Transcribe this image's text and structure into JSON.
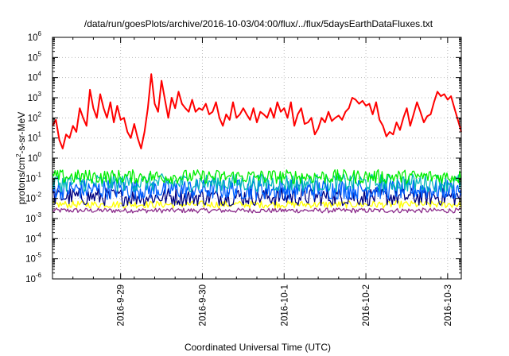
{
  "chart_data": {
    "type": "line",
    "title": "/data/run/goesPlots/archive/2016-10-03/04:00/flux/../flux/5daysEarthDataFluxes.txt",
    "xlabel": "Coordinated Universal Time (UTC)",
    "ylabel": {
      "prefix": "protons/cm",
      "superscript": "2",
      "suffix": "-s-sr-MeV"
    },
    "y_scale": "log",
    "ylim": [
      1e-06,
      1000000.0
    ],
    "y_ticks": [
      {
        "base": "10",
        "exp": "-6",
        "value": 1e-06
      },
      {
        "base": "10",
        "exp": "-5",
        "value": 1e-05
      },
      {
        "base": "10",
        "exp": "-4",
        "value": 0.0001
      },
      {
        "base": "10",
        "exp": "-3",
        "value": 0.001
      },
      {
        "base": "10",
        "exp": "-2",
        "value": 0.01
      },
      {
        "base": "10",
        "exp": "-1",
        "value": 0.1
      },
      {
        "base": "10",
        "exp": "0",
        "value": 1
      },
      {
        "base": "10",
        "exp": "1",
        "value": 10.0
      },
      {
        "base": "10",
        "exp": "2",
        "value": 100.0
      },
      {
        "base": "10",
        "exp": "3",
        "value": 1000.0
      },
      {
        "base": "10",
        "exp": "4",
        "value": 10000.0
      },
      {
        "base": "10",
        "exp": "5",
        "value": 100000.0
      },
      {
        "base": "10",
        "exp": "6",
        "value": 1000000.0
      }
    ],
    "x_scale": "time",
    "xlim": [
      "2016-09-28T04:00",
      "2016-10-03T04:00"
    ],
    "x_ticks": [
      {
        "label": "2016-9-29",
        "value": "2016-09-29T00:00"
      },
      {
        "label": "2016-9-30",
        "value": "2016-09-30T00:00"
      },
      {
        "label": "2016-10-1",
        "value": "2016-10-01T00:00"
      },
      {
        "label": "2016-10-2",
        "value": "2016-10-02T00:00"
      },
      {
        "label": "2016-10-3",
        "value": "2016-10-03T00:00"
      }
    ],
    "grid": true,
    "series": [
      {
        "color": "#ff0000",
        "typical_level": "1e1 to 1e3",
        "values": [
          [
            "2016-09-28T04:00",
            40
          ],
          [
            "2016-09-28T05:00",
            80
          ],
          [
            "2016-09-28T06:00",
            8
          ],
          [
            "2016-09-28T07:00",
            3
          ],
          [
            "2016-09-28T08:00",
            15
          ],
          [
            "2016-09-28T09:00",
            10
          ],
          [
            "2016-09-28T10:00",
            40
          ],
          [
            "2016-09-28T11:00",
            20
          ],
          [
            "2016-09-28T12:00",
            300
          ],
          [
            "2016-09-28T13:00",
            100
          ],
          [
            "2016-09-28T14:00",
            40
          ],
          [
            "2016-09-28T15:00",
            2500
          ],
          [
            "2016-09-28T16:00",
            300
          ],
          [
            "2016-09-28T17:00",
            100
          ],
          [
            "2016-09-28T18:00",
            1500
          ],
          [
            "2016-09-28T19:00",
            300
          ],
          [
            "2016-09-28T20:00",
            100
          ],
          [
            "2016-09-28T21:00",
            600
          ],
          [
            "2016-09-28T22:00",
            60
          ],
          [
            "2016-09-28T23:00",
            400
          ],
          [
            "2016-09-29T00:00",
            80
          ],
          [
            "2016-09-29T01:00",
            100
          ],
          [
            "2016-09-29T02:00",
            20
          ],
          [
            "2016-09-29T03:00",
            10
          ],
          [
            "2016-09-29T04:00",
            50
          ],
          [
            "2016-09-29T05:00",
            10
          ],
          [
            "2016-09-29T06:00",
            3
          ],
          [
            "2016-09-29T07:00",
            20
          ],
          [
            "2016-09-29T08:00",
            300
          ],
          [
            "2016-09-29T09:00",
            15000
          ],
          [
            "2016-09-29T10:00",
            500
          ],
          [
            "2016-09-29T11:00",
            200
          ],
          [
            "2016-09-29T12:00",
            7000
          ],
          [
            "2016-09-29T13:00",
            800
          ],
          [
            "2016-09-29T14:00",
            100
          ],
          [
            "2016-09-29T15:00",
            1000
          ],
          [
            "2016-09-29T16:00",
            300
          ],
          [
            "2016-09-29T17:00",
            2000
          ],
          [
            "2016-09-29T18:00",
            500
          ],
          [
            "2016-09-29T19:00",
            300
          ],
          [
            "2016-09-29T20:00",
            200
          ],
          [
            "2016-09-29T21:00",
            800
          ],
          [
            "2016-09-29T22:00",
            200
          ],
          [
            "2016-09-29T23:00",
            300
          ],
          [
            "2016-09-30T00:00",
            250
          ],
          [
            "2016-09-30T01:00",
            500
          ],
          [
            "2016-09-30T02:00",
            150
          ],
          [
            "2016-09-30T03:00",
            200
          ],
          [
            "2016-09-30T04:00",
            600
          ],
          [
            "2016-09-30T05:00",
            100
          ],
          [
            "2016-09-30T06:00",
            40
          ],
          [
            "2016-09-30T07:00",
            150
          ],
          [
            "2016-09-30T08:00",
            80
          ],
          [
            "2016-09-30T09:00",
            600
          ],
          [
            "2016-09-30T10:00",
            100
          ],
          [
            "2016-09-30T11:00",
            150
          ],
          [
            "2016-09-30T12:00",
            300
          ],
          [
            "2016-09-30T13:00",
            150
          ],
          [
            "2016-09-30T14:00",
            80
          ],
          [
            "2016-09-30T15:00",
            300
          ],
          [
            "2016-09-30T16:00",
            60
          ],
          [
            "2016-09-30T17:00",
            200
          ],
          [
            "2016-09-30T18:00",
            150
          ],
          [
            "2016-09-30T19:00",
            100
          ],
          [
            "2016-09-30T20:00",
            300
          ],
          [
            "2016-09-30T21:00",
            100
          ],
          [
            "2016-09-30T22:00",
            600
          ],
          [
            "2016-09-30T23:00",
            200
          ],
          [
            "2016-10-01T00:00",
            300
          ],
          [
            "2016-10-01T01:00",
            100
          ],
          [
            "2016-10-01T02:00",
            600
          ],
          [
            "2016-10-01T03:00",
            40
          ],
          [
            "2016-10-01T04:00",
            150
          ],
          [
            "2016-10-01T05:00",
            300
          ],
          [
            "2016-10-01T06:00",
            50
          ],
          [
            "2016-10-01T07:00",
            60
          ],
          [
            "2016-10-01T08:00",
            100
          ],
          [
            "2016-10-01T09:00",
            15
          ],
          [
            "2016-10-01T10:00",
            30
          ],
          [
            "2016-10-01T11:00",
            100
          ],
          [
            "2016-10-01T12:00",
            60
          ],
          [
            "2016-10-01T13:00",
            200
          ],
          [
            "2016-10-01T14:00",
            70
          ],
          [
            "2016-10-01T15:00",
            100
          ],
          [
            "2016-10-01T16:00",
            130
          ],
          [
            "2016-10-01T17:00",
            80
          ],
          [
            "2016-10-01T18:00",
            200
          ],
          [
            "2016-10-01T19:00",
            300
          ],
          [
            "2016-10-01T20:00",
            1000
          ],
          [
            "2016-10-01T21:00",
            800
          ],
          [
            "2016-10-01T22:00",
            500
          ],
          [
            "2016-10-01T23:00",
            700
          ],
          [
            "2016-10-02T00:00",
            400
          ],
          [
            "2016-10-02T01:00",
            500
          ],
          [
            "2016-10-02T02:00",
            150
          ],
          [
            "2016-10-02T03:00",
            600
          ],
          [
            "2016-10-02T04:00",
            80
          ],
          [
            "2016-10-02T05:00",
            40
          ],
          [
            "2016-10-02T06:00",
            12
          ],
          [
            "2016-10-02T07:00",
            20
          ],
          [
            "2016-10-02T08:00",
            15
          ],
          [
            "2016-10-02T09:00",
            60
          ],
          [
            "2016-10-02T10:00",
            25
          ],
          [
            "2016-10-02T11:00",
            100
          ],
          [
            "2016-10-02T12:00",
            300
          ],
          [
            "2016-10-02T13:00",
            40
          ],
          [
            "2016-10-02T14:00",
            150
          ],
          [
            "2016-10-02T15:00",
            600
          ],
          [
            "2016-10-02T16:00",
            200
          ],
          [
            "2016-10-02T17:00",
            60
          ],
          [
            "2016-10-02T18:00",
            120
          ],
          [
            "2016-10-02T19:00",
            150
          ],
          [
            "2016-10-02T20:00",
            600
          ],
          [
            "2016-10-02T21:00",
            2000
          ],
          [
            "2016-10-02T22:00",
            1200
          ],
          [
            "2016-10-02T23:00",
            1500
          ],
          [
            "2016-10-03T00:00",
            800
          ],
          [
            "2016-10-03T01:00",
            1200
          ],
          [
            "2016-10-03T02:00",
            300
          ],
          [
            "2016-10-03T03:00",
            80
          ],
          [
            "2016-10-03T04:00",
            20
          ]
        ]
      },
      {
        "color": "#00ee00",
        "typical_level": 0.12
      },
      {
        "color": "#00b8b8",
        "typical_level": 0.06
      },
      {
        "color": "#0060ff",
        "typical_level": 0.028
      },
      {
        "color": "#000080",
        "typical_level": 0.012
      },
      {
        "color": "#ffff00",
        "typical_level": 0.005
      },
      {
        "color": "#8b2b8b",
        "typical_level": 0.0025
      }
    ]
  }
}
